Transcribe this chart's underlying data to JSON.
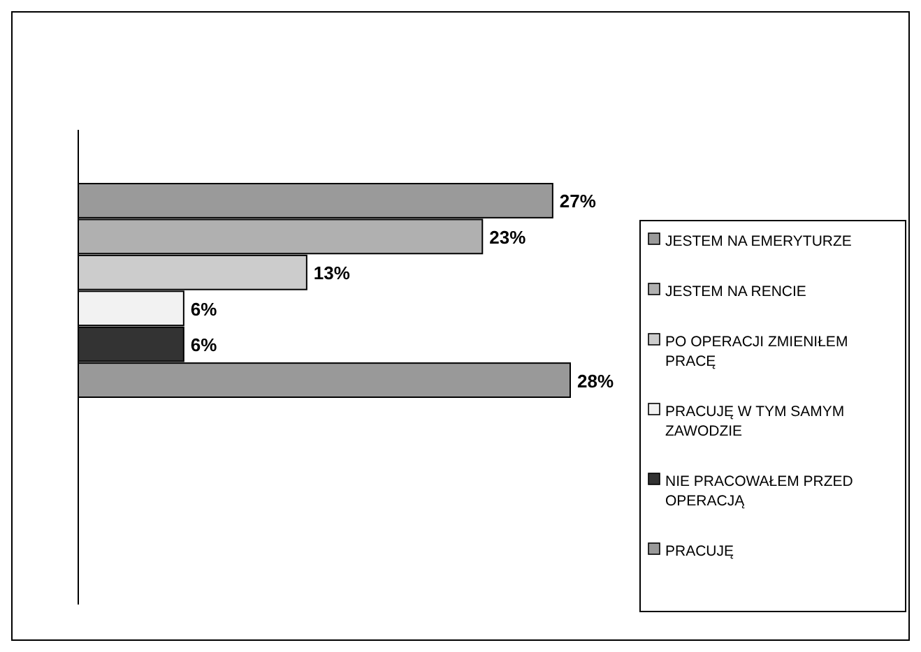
{
  "chart_data": {
    "type": "bar",
    "orientation": "horizontal",
    "categories": [
      null
    ],
    "series": [
      {
        "name": "JESTEM NA EMERYTURZE",
        "color": "#9a9a9a",
        "values": [
          27
        ],
        "value_labels": [
          "27%"
        ]
      },
      {
        "name": "JESTEM NA RENCIE",
        "color": "#b0b0b0",
        "values": [
          23
        ],
        "value_labels": [
          "23%"
        ]
      },
      {
        "name": "PO OPERACJI ZMIENIŁEM PRACĘ",
        "color": "#cccccc",
        "values": [
          13
        ],
        "value_labels": [
          "13%"
        ]
      },
      {
        "name": "PRACUJĘ W TYM SAMYM ZAWODZIE",
        "color": "#f2f2f2",
        "values": [
          6
        ],
        "value_labels": [
          "6%"
        ]
      },
      {
        "name": "NIE PRACOWAŁEM PRZED OPERACJĄ",
        "color": "#333333",
        "values": [
          6
        ],
        "value_labels": [
          "6%"
        ]
      },
      {
        "name": "PRACUJĘ",
        "color": "#999999",
        "values": [
          28
        ],
        "value_labels": [
          "28%"
        ]
      }
    ],
    "legend": "right"
  }
}
